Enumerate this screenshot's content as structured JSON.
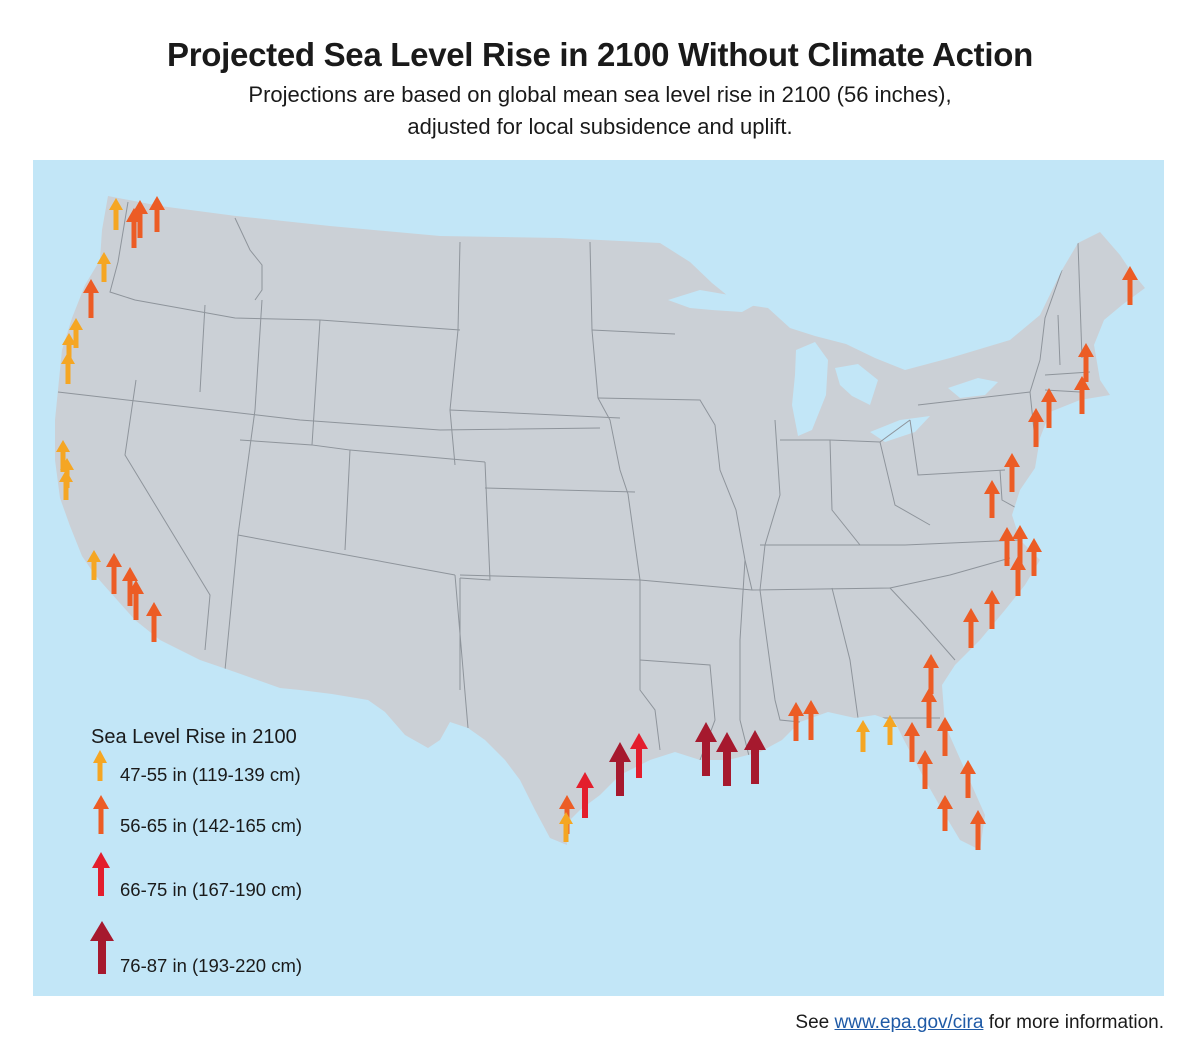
{
  "title": "Projected Sea Level Rise in 2100 Without Climate Action",
  "subtitle_line1": "Projections are based on global mean sea level rise in 2100 (56 inches),",
  "subtitle_line2": "adjusted for local subsidence and uplift.",
  "legend": {
    "title": "Sea Level Rise in 2100",
    "categories": [
      {
        "key": "c1",
        "label": "47-55 in (119-139 cm)",
        "color": "#f5a623"
      },
      {
        "key": "c2",
        "label": "56-65 in (142-165 cm)",
        "color": "#ec5c25"
      },
      {
        "key": "c3",
        "label": "66-75 in (167-190 cm)",
        "color": "#e31e2d"
      },
      {
        "key": "c4",
        "label": "76-87 in (193-220 cm)",
        "color": "#a6192e"
      }
    ]
  },
  "colors": {
    "water": "#c2e6f7",
    "land": "#cbd0d6",
    "border": "#8e949b"
  },
  "footer": {
    "prefix": "See ",
    "link_text": "www.epa.gov/cira",
    "suffix": " for more information."
  }
}
